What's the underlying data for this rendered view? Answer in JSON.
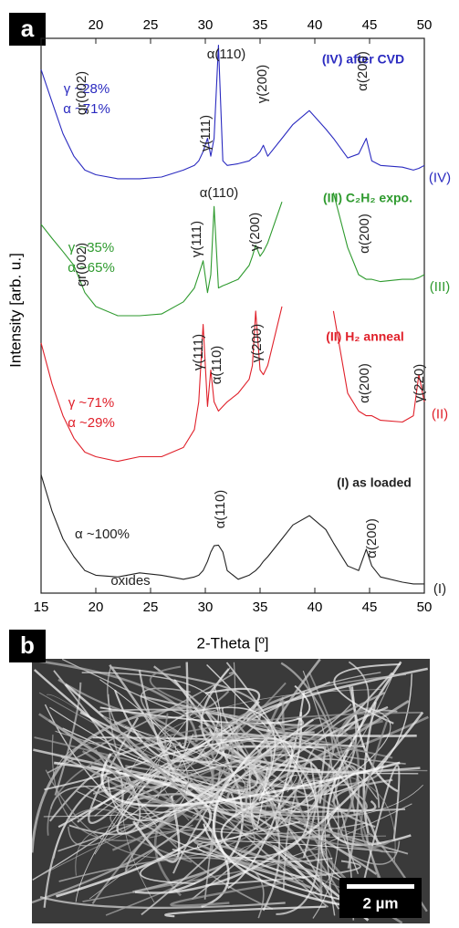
{
  "chart_data": {
    "type": "line",
    "panel_label": "a",
    "x_label": "2-Theta [º]",
    "y_label": "Intensity [arb. u.]",
    "xlim": [
      15,
      50
    ],
    "ylim": [
      0,
      96
    ],
    "xticks": [
      15,
      20,
      25,
      30,
      35,
      40,
      45,
      50
    ],
    "xticks_top": [
      20,
      25,
      30,
      35,
      40,
      45,
      50
    ],
    "x": [
      15,
      16,
      17,
      18,
      19,
      20,
      22,
      24,
      26,
      28,
      29,
      29.4,
      29.8,
      30.2,
      30.5,
      30.8,
      31.2,
      31.6,
      32,
      33,
      34,
      34.3,
      34.6,
      35,
      35.3,
      35.7,
      37,
      38,
      39.5,
      41,
      41.7,
      43,
      44,
      44.7,
      45.2,
      46,
      48,
      49,
      49.5,
      50
    ],
    "series": [
      {
        "name": "(I)",
        "color": "#222222",
        "values": [
          20.5,
          14.2,
          9.4,
          6.3,
          3.9,
          3.1,
          2.8,
          3.5,
          3.1,
          2.4,
          2.8,
          3.1,
          3.9,
          5.5,
          7.1,
          8.2,
          8.3,
          7.1,
          3.9,
          2.4,
          3.1,
          3.5,
          3.9,
          4.7,
          5.5,
          6.3,
          9.4,
          11.8,
          13.4,
          11.0,
          8.7,
          4.7,
          3.9,
          7.6,
          4.7,
          2.8,
          1.9,
          1.6,
          1.6,
          1.6
        ]
      },
      {
        "name": "(II)",
        "color": "#e0202a",
        "values": [
          43.3,
          36.2,
          30.7,
          26.8,
          24.4,
          23.6,
          22.8,
          23.6,
          23.6,
          25.2,
          28.3,
          33.1,
          46.5,
          32.3,
          38.6,
          33.1,
          31.5,
          32.3,
          33.1,
          34.6,
          37.0,
          39.4,
          48.8,
          38.6,
          37.8,
          39.4,
          49.6,
          null,
          null,
          null,
          48.8,
          34.6,
          31.5,
          30.7,
          30.7,
          29.9,
          29.6,
          30.7,
          37.8,
          33.1
        ]
      },
      {
        "name": "(III)",
        "color": "#2e9a2e",
        "values": [
          63.8,
          61.4,
          59.1,
          56.7,
          52.0,
          49.6,
          48.0,
          48.0,
          48.3,
          50.4,
          52.8,
          55.1,
          57.5,
          52.0,
          55.1,
          66.9,
          52.8,
          53.2,
          53.5,
          54.3,
          56.7,
          58.3,
          60.2,
          58.3,
          59.1,
          60.6,
          67.7,
          null,
          null,
          null,
          69.3,
          59.8,
          55.1,
          54.3,
          54.3,
          53.9,
          54.3,
          54.3,
          54.6,
          55.1
        ]
      },
      {
        "name": "(IV)",
        "color": "#2a2ac0",
        "values": [
          90.6,
          85.0,
          79.5,
          75.6,
          73.2,
          72.4,
          71.7,
          71.7,
          72.0,
          73.2,
          74.0,
          74.8,
          76.4,
          78.7,
          75.6,
          78.7,
          94.8,
          74.8,
          74.0,
          74.3,
          74.8,
          75.3,
          75.6,
          76.4,
          77.5,
          75.6,
          78.7,
          81.1,
          83.5,
          80.3,
          78.7,
          75.3,
          76.0,
          78.7,
          74.8,
          74.0,
          73.7,
          73.2,
          73.5,
          74.0
        ]
      }
    ],
    "annotations": [
      {
        "text": "α(110)",
        "color": "#222222"
      },
      {
        "text": "(IV) after CVD",
        "color": "#2a2ac0"
      },
      {
        "text": "γ ~28%",
        "color": "#2a2ac0"
      },
      {
        "text": "α ~71%",
        "color": "#2a2ac0"
      },
      {
        "text": "gr(002)",
        "color": "#222222"
      },
      {
        "text": "γ(111)",
        "color": "#222222"
      },
      {
        "text": "γ(200)",
        "color": "#222222"
      },
      {
        "text": "α(200)",
        "color": "#222222"
      },
      {
        "text": "(III) C₂H₂ expo.",
        "color": "#2e9a2e"
      },
      {
        "text": "γ ~35%",
        "color": "#2e9a2e"
      },
      {
        "text": "α ~65%",
        "color": "#2e9a2e"
      },
      {
        "text": "gr(002)",
        "color": "#222222"
      },
      {
        "text": "α(110)",
        "color": "#222222"
      },
      {
        "text": "γ(111)",
        "color": "#222222"
      },
      {
        "text": "γ(200)",
        "color": "#222222"
      },
      {
        "text": "α(200)",
        "color": "#222222"
      },
      {
        "text": "(II) H₂ anneal",
        "color": "#e0202a"
      },
      {
        "text": "γ ~71%",
        "color": "#e0202a"
      },
      {
        "text": "α ~29%",
        "color": "#e0202a"
      },
      {
        "text": "γ(111)",
        "color": "#222222"
      },
      {
        "text": "α(110)",
        "color": "#222222"
      },
      {
        "text": "γ(200)",
        "color": "#222222"
      },
      {
        "text": "α(200)",
        "color": "#222222"
      },
      {
        "text": "γ(220)",
        "color": "#222222"
      },
      {
        "text": "(I) as loaded",
        "color": "#222222"
      },
      {
        "text": "α ~100%",
        "color": "#222222"
      },
      {
        "text": "oxides",
        "color": "#222222"
      },
      {
        "text": "α(110)",
        "color": "#222222"
      },
      {
        "text": "α(200)",
        "color": "#222222"
      }
    ]
  },
  "image_panel": {
    "panel_label": "b",
    "scale_bar": "2 µm"
  }
}
